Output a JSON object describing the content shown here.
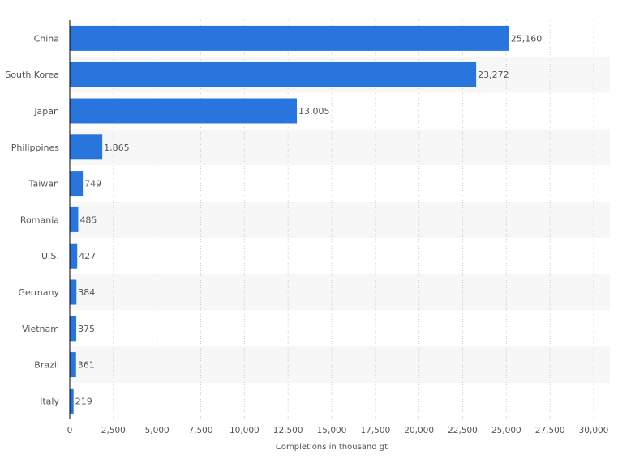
{
  "chart_data": {
    "type": "bar",
    "orientation": "horizontal",
    "title": "",
    "categories": [
      "China",
      "South Korea",
      "Japan",
      "Philippines",
      "Taiwan",
      "Romania",
      "U.S.",
      "Germany",
      "Vietnam",
      "Brazil",
      "Italy"
    ],
    "values": [
      25160,
      23272,
      13005,
      1865,
      749,
      485,
      427,
      384,
      375,
      361,
      219
    ],
    "value_labels": [
      "25,160",
      "23,272",
      "13,005",
      "1,865",
      "749",
      "485",
      "427",
      "384",
      "375",
      "361",
      "219"
    ],
    "xlabel": "Completions in thousand gt",
    "ylabel": "",
    "xlim": [
      0,
      30000
    ],
    "xticks": [
      0,
      2500,
      5000,
      7500,
      10000,
      12500,
      15000,
      17500,
      20000,
      22500,
      25000,
      27500,
      30000
    ],
    "xtick_labels": [
      "0",
      "2,500",
      "5,000",
      "7,500",
      "10,000",
      "12,500",
      "15,000",
      "17,500",
      "20,000",
      "22,500",
      "25,000",
      "27,500",
      "30,000"
    ],
    "grid": true,
    "colors": {
      "bar": "#2876dd",
      "band": "#f7f7f7",
      "grid": "#cccccc"
    }
  }
}
